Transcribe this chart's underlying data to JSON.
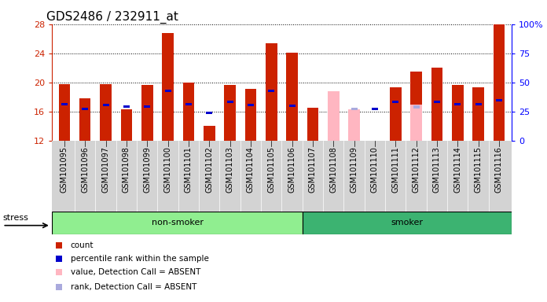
{
  "title": "GDS2486 / 232911_at",
  "samples": [
    "GSM101095",
    "GSM101096",
    "GSM101097",
    "GSM101098",
    "GSM101099",
    "GSM101100",
    "GSM101101",
    "GSM101102",
    "GSM101103",
    "GSM101104",
    "GSM101105",
    "GSM101106",
    "GSM101107",
    "GSM101108",
    "GSM101109",
    "GSM101110",
    "GSM101111",
    "GSM101112",
    "GSM101113",
    "GSM101114",
    "GSM101115",
    "GSM101116"
  ],
  "red_values": [
    19.7,
    17.8,
    19.7,
    16.3,
    19.6,
    26.8,
    20.0,
    14.0,
    19.6,
    19.1,
    25.4,
    24.1,
    16.5,
    null,
    null,
    null,
    19.3,
    21.5,
    22.0,
    19.6,
    19.3,
    28.0
  ],
  "pink_values": [
    null,
    null,
    null,
    null,
    null,
    null,
    null,
    null,
    null,
    null,
    null,
    null,
    null,
    18.8,
    16.3,
    null,
    null,
    16.9,
    null,
    null,
    null,
    null
  ],
  "blue_values": [
    17.0,
    16.3,
    16.9,
    16.7,
    16.7,
    18.8,
    17.0,
    15.8,
    17.3,
    16.9,
    18.8,
    16.8,
    null,
    null,
    16.3,
    16.3,
    17.3,
    16.6,
    17.3,
    17.0,
    17.0,
    17.5
  ],
  "lightblue_values": [
    null,
    null,
    null,
    null,
    null,
    null,
    null,
    null,
    null,
    null,
    null,
    null,
    null,
    null,
    16.3,
    null,
    null,
    16.6,
    null,
    null,
    null,
    null
  ],
  "group_boundaries": [
    0,
    12,
    22
  ],
  "group_colors": [
    "#90EE90",
    "#3CB371"
  ],
  "ylim": [
    12,
    28
  ],
  "yticks": [
    12,
    16,
    20,
    24,
    28
  ],
  "y2ticks": [
    0,
    25,
    50,
    75,
    100
  ],
  "y2labels": [
    "0",
    "25",
    "50",
    "75",
    "100%"
  ],
  "bar_color_red": "#CC2200",
  "bar_color_pink": "#FFB6C1",
  "bar_color_blue": "#0000CC",
  "bar_color_lightblue": "#AAAADD",
  "bar_width": 0.55,
  "tick_fontsize": 7,
  "title_fontsize": 11
}
